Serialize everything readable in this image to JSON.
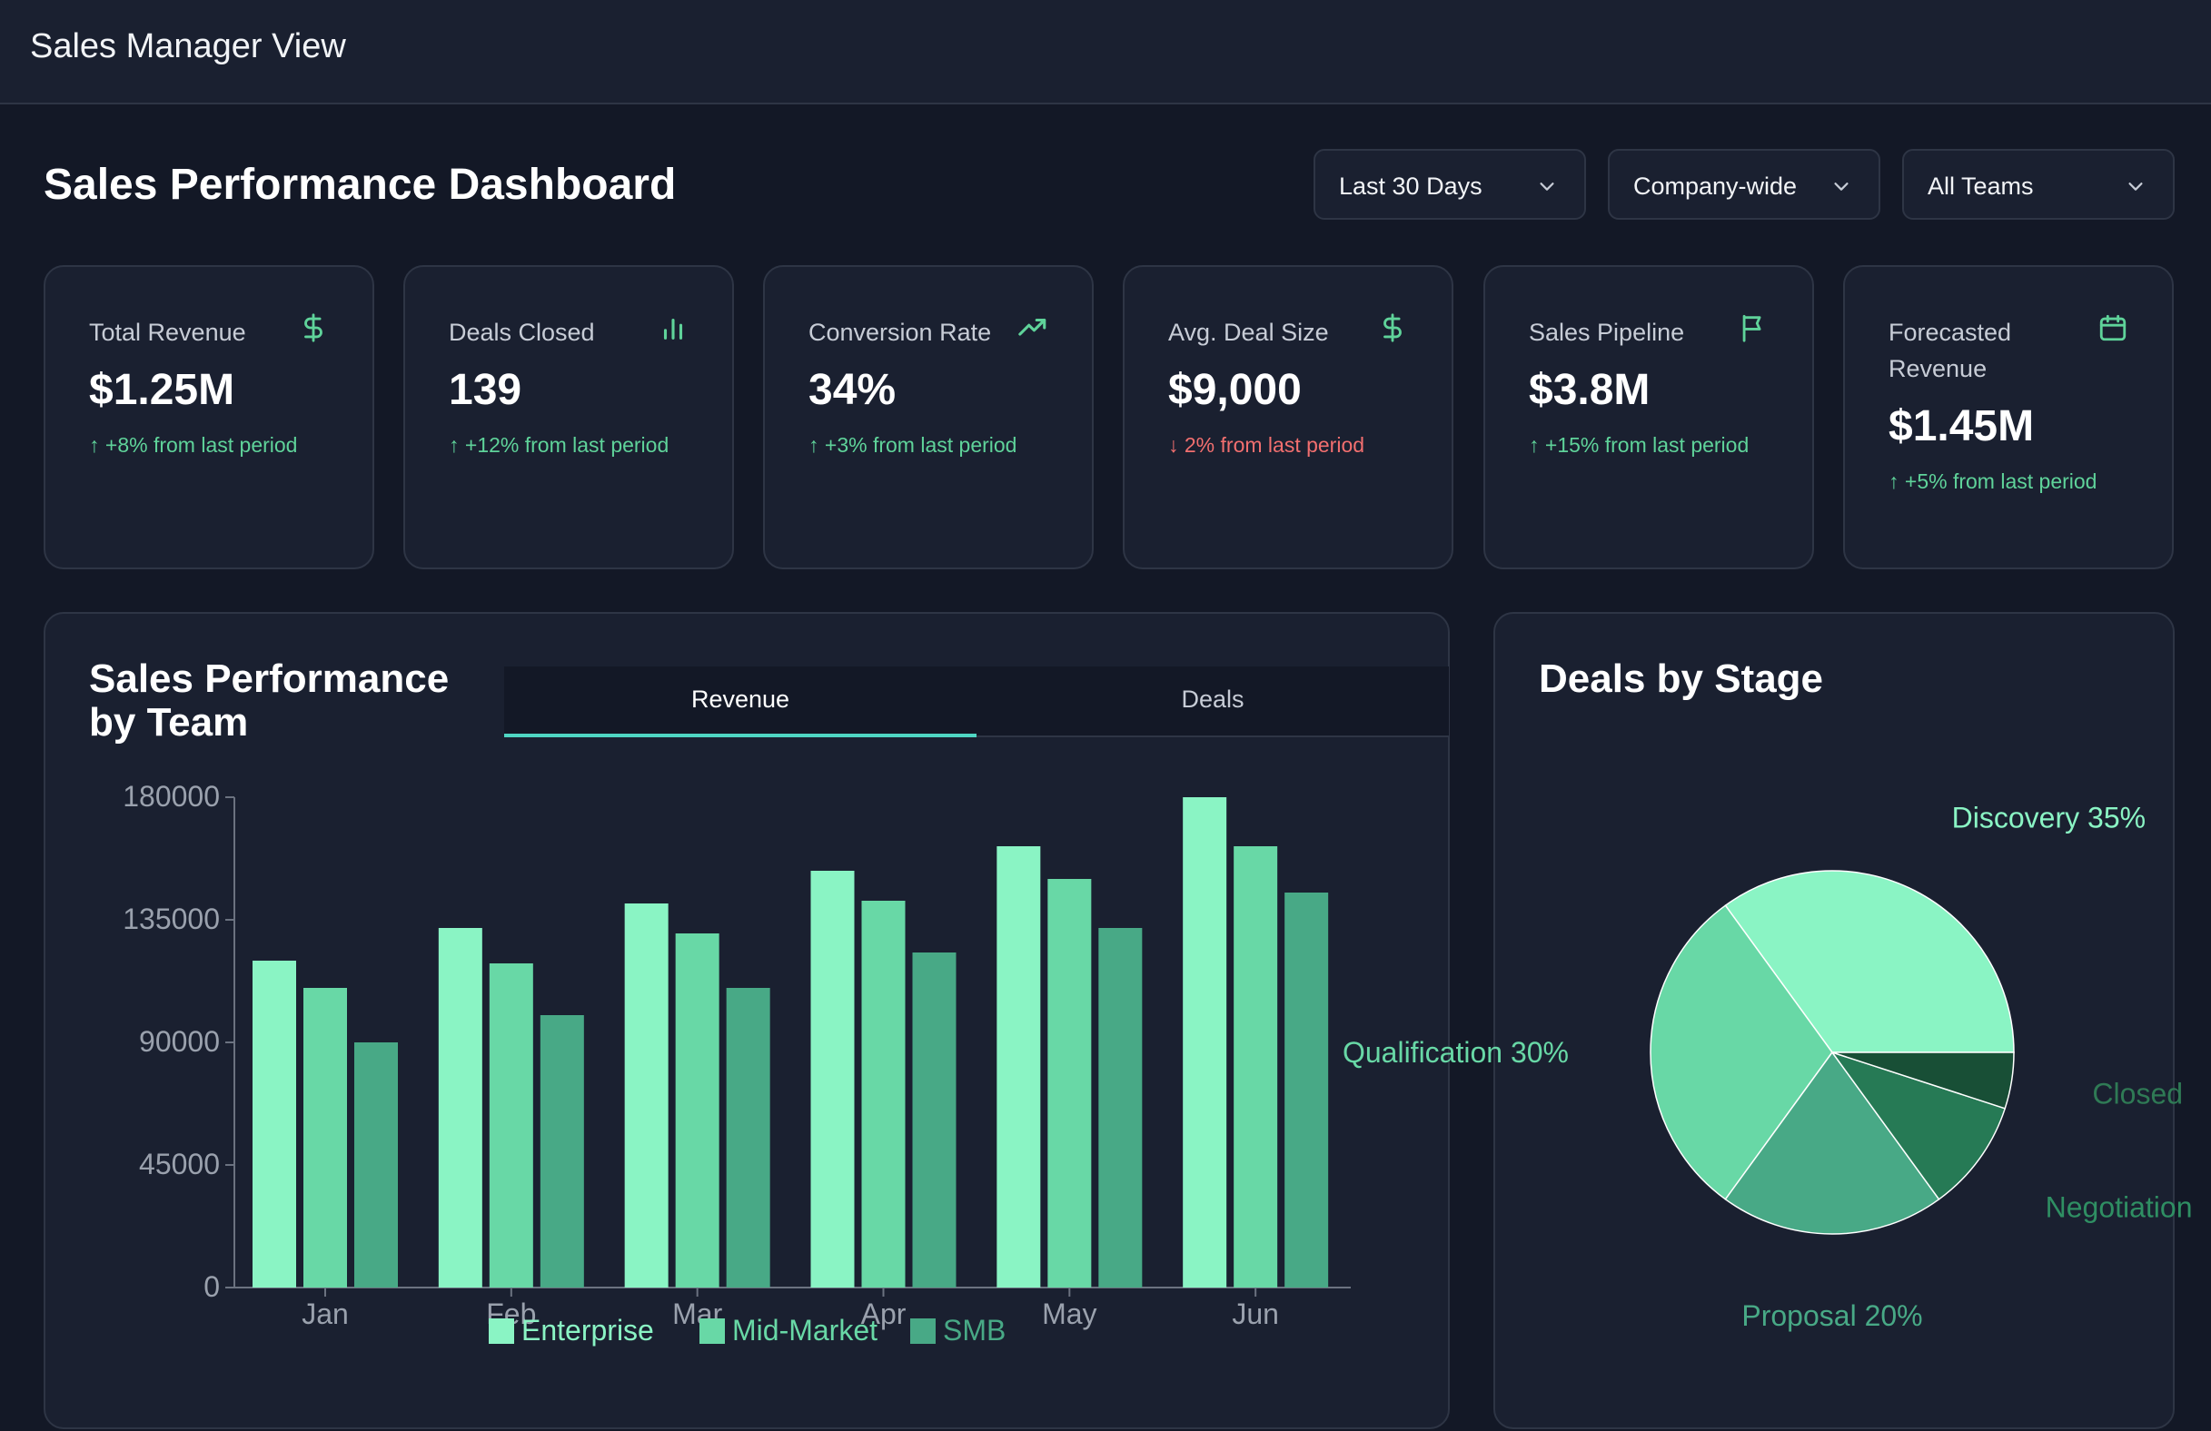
{
  "app": {
    "title": "Sales Manager View"
  },
  "header": {
    "title": "Sales Performance Dashboard"
  },
  "filters": [
    {
      "label": "Last 30 Days"
    },
    {
      "label": "Company-wide"
    },
    {
      "label": "All Teams"
    }
  ],
  "kpis": [
    {
      "label": "Total Revenue",
      "value": "$1.25M",
      "change": "↑ +8% from last period",
      "trend": "up",
      "icon": "dollar-icon"
    },
    {
      "label": "Deals Closed",
      "value": "139",
      "change": "↑ +12% from last period",
      "trend": "up",
      "icon": "bar-chart-icon"
    },
    {
      "label": "Conversion Rate",
      "value": "34%",
      "change": "↑ +3% from last period",
      "trend": "up",
      "icon": "trending-up-icon"
    },
    {
      "label": "Avg. Deal Size",
      "value": "$9,000",
      "change": "↓ 2% from last period",
      "trend": "down",
      "icon": "dollar-icon"
    },
    {
      "label": "Sales Pipeline",
      "value": "$3.8M",
      "change": "↑ +15% from last period",
      "trend": "up",
      "icon": "flag-icon"
    },
    {
      "label": "Forecasted Revenue",
      "value": "$1.45M",
      "change": "↑ +5% from last period",
      "trend": "up",
      "icon": "calendar-icon"
    }
  ],
  "team_panel": {
    "title": "Sales Performance by Team",
    "tabs": [
      "Revenue",
      "Deals"
    ],
    "active_tab": "Revenue"
  },
  "stage_panel": {
    "title": "Deals by Stage"
  },
  "colors": {
    "accent": "#4fd6c3",
    "positive": "#5fd39a",
    "negative": "#f26f6f",
    "enterprise": "#8af4c4",
    "mid_market": "#68d8a6",
    "smb": "#48a986"
  },
  "chart_data": [
    {
      "type": "bar",
      "categories": [
        "Jan",
        "Feb",
        "Mar",
        "Apr",
        "May",
        "Jun"
      ],
      "series": [
        {
          "name": "Enterprise",
          "values": [
            120000,
            132000,
            141000,
            153000,
            162000,
            180000
          ]
        },
        {
          "name": "Mid-Market",
          "values": [
            110000,
            119000,
            130000,
            142000,
            150000,
            162000
          ]
        },
        {
          "name": "SMB",
          "values": [
            90000,
            100000,
            110000,
            123000,
            132000,
            145000
          ]
        }
      ],
      "yticks": [
        "0",
        "45000",
        "90000",
        "135000",
        "180000"
      ],
      "ylim": [
        0,
        180000
      ],
      "legend": "bottom"
    },
    {
      "type": "pie",
      "slices": [
        {
          "label": "Discovery",
          "value": 35,
          "text": "Discovery 35%"
        },
        {
          "label": "Qualification",
          "value": 30,
          "text": "Qualification 30%"
        },
        {
          "label": "Proposal",
          "value": 20,
          "text": "Proposal 20%"
        },
        {
          "label": "Negotiation",
          "value": 10,
          "text": "Negotiation"
        },
        {
          "label": "Closed",
          "value": 5,
          "text": "Closed"
        }
      ]
    }
  ]
}
